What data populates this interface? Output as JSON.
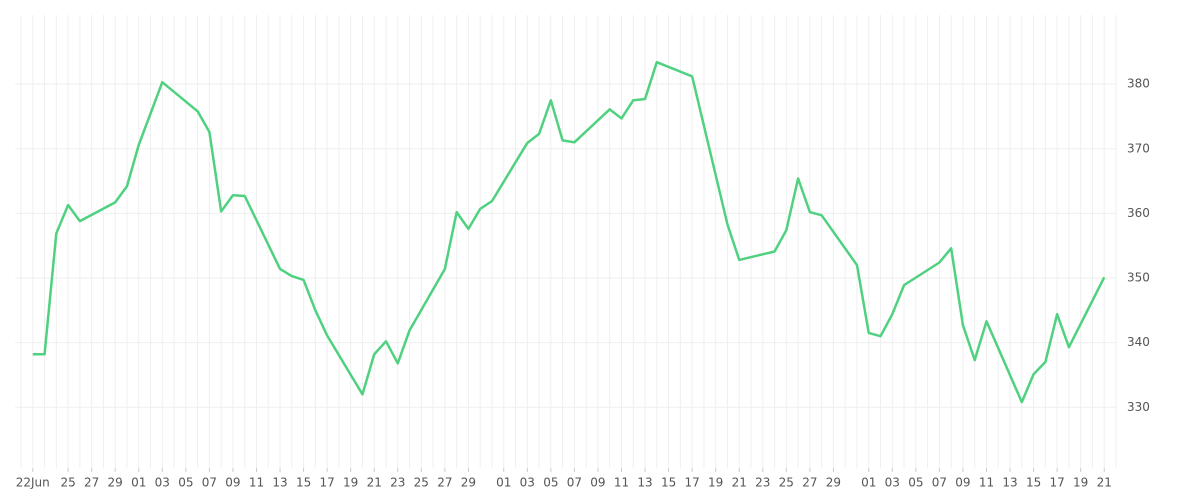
{
  "chart_data": {
    "type": "line",
    "x": [
      "06-22",
      "06-23",
      "06-24",
      "06-25",
      "06-26",
      "06-29",
      "06-30",
      "07-01",
      "07-03",
      "07-06",
      "07-07",
      "07-08",
      "07-09",
      "07-10",
      "07-13",
      "07-14",
      "07-15",
      "07-16",
      "07-17",
      "07-20",
      "07-21",
      "07-22",
      "07-23",
      "07-24",
      "07-27",
      "07-28",
      "07-29",
      "07-30",
      "07-31",
      "08-03",
      "08-04",
      "08-05",
      "08-06",
      "08-07",
      "08-10",
      "08-11",
      "08-12",
      "08-13",
      "08-14",
      "08-17",
      "08-20",
      "08-21",
      "08-24",
      "08-25",
      "08-26",
      "08-27",
      "08-28",
      "08-31",
      "09-01",
      "09-02",
      "09-03",
      "09-04",
      "09-07",
      "09-08",
      "09-09",
      "09-10",
      "09-11",
      "09-14",
      "09-15",
      "09-16",
      "09-17",
      "09-18",
      "09-21"
    ],
    "series": [
      {
        "color": "#4fd180",
        "values": [
          338.2,
          338.2,
          356.9,
          361.3,
          358.8,
          361.7,
          364.2,
          370.6,
          380.3,
          375.8,
          372.6,
          360.3,
          362.8,
          362.7,
          351.4,
          350.3,
          349.7,
          345.0,
          341.1,
          332.0,
          338.2,
          340.2,
          336.8,
          341.9,
          351.4,
          360.2,
          357.6,
          360.7,
          361.9,
          370.9,
          372.3,
          377.5,
          371.3,
          371.0,
          376.1,
          374.7,
          377.5,
          377.7,
          383.4,
          381.2,
          358.3,
          352.8,
          354.1,
          357.4,
          365.4,
          360.2,
          359.7,
          352.0,
          341.5,
          341.0,
          344.4,
          348.9,
          352.4,
          354.6,
          342.7,
          337.3,
          343.3,
          330.8,
          335.1,
          337.0,
          344.4,
          339.3,
          350.1
        ]
      }
    ],
    "xlim": [
      "06-21",
      "09-22"
    ],
    "xticks": [
      {
        "value": "06-22",
        "label": "22Jun"
      },
      {
        "value": "06-25",
        "label": "25"
      },
      {
        "value": "06-27",
        "label": "27"
      },
      {
        "value": "06-29",
        "label": "29"
      },
      {
        "value": "07-01",
        "label": "01"
      },
      {
        "value": "07-03",
        "label": "03"
      },
      {
        "value": "07-05",
        "label": "05"
      },
      {
        "value": "07-07",
        "label": "07"
      },
      {
        "value": "07-09",
        "label": "09"
      },
      {
        "value": "07-11",
        "label": "11"
      },
      {
        "value": "07-13",
        "label": "13"
      },
      {
        "value": "07-15",
        "label": "15"
      },
      {
        "value": "07-17",
        "label": "17"
      },
      {
        "value": "07-19",
        "label": "19"
      },
      {
        "value": "07-21",
        "label": "21"
      },
      {
        "value": "07-23",
        "label": "23"
      },
      {
        "value": "07-25",
        "label": "25"
      },
      {
        "value": "07-27",
        "label": "27"
      },
      {
        "value": "07-29",
        "label": "29"
      },
      {
        "value": "08-01",
        "label": "01"
      },
      {
        "value": "08-03",
        "label": "03"
      },
      {
        "value": "08-05",
        "label": "05"
      },
      {
        "value": "08-07",
        "label": "07"
      },
      {
        "value": "08-09",
        "label": "09"
      },
      {
        "value": "08-11",
        "label": "11"
      },
      {
        "value": "08-13",
        "label": "13"
      },
      {
        "value": "08-15",
        "label": "15"
      },
      {
        "value": "08-17",
        "label": "17"
      },
      {
        "value": "08-19",
        "label": "19"
      },
      {
        "value": "08-21",
        "label": "21"
      },
      {
        "value": "08-23",
        "label": "23"
      },
      {
        "value": "08-25",
        "label": "25"
      },
      {
        "value": "08-27",
        "label": "27"
      },
      {
        "value": "08-29",
        "label": "29"
      },
      {
        "value": "09-01",
        "label": "01"
      },
      {
        "value": "09-03",
        "label": "03"
      },
      {
        "value": "09-05",
        "label": "05"
      },
      {
        "value": "09-07",
        "label": "07"
      },
      {
        "value": "09-09",
        "label": "09"
      },
      {
        "value": "09-11",
        "label": "11"
      },
      {
        "value": "09-13",
        "label": "13"
      },
      {
        "value": "09-15",
        "label": "15"
      },
      {
        "value": "09-17",
        "label": "17"
      },
      {
        "value": "09-19",
        "label": "19"
      },
      {
        "value": "09-21",
        "label": "21"
      }
    ],
    "ylim": [
      320.6,
      390.7
    ],
    "yticks": [
      330,
      340,
      350,
      360,
      370,
      380
    ],
    "grid": true
  }
}
